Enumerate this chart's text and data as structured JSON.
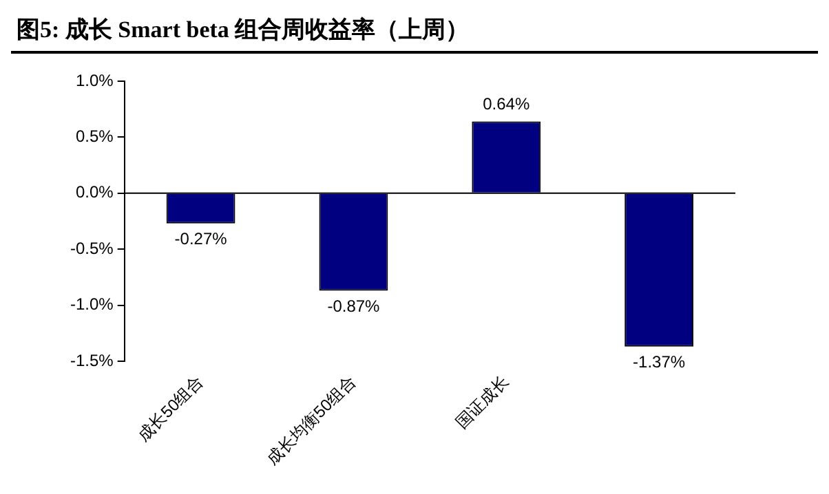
{
  "chart_data": {
    "type": "bar",
    "title": "图5: 成长 Smart beta 组合周收益率（上周）",
    "categories": [
      "成长50组合",
      "成长均衡50组合",
      "国证成长",
      null
    ],
    "values": [
      -0.27,
      -0.87,
      0.64,
      -1.37
    ],
    "color": "#000080",
    "value_labels": [
      "-0.27%",
      "-0.87%",
      "0.64%",
      "-1.37%"
    ],
    "ylim": [
      -1.5,
      1.0
    ],
    "yticks": [
      {
        "value": -1.5,
        "label": "-1.5%"
      },
      {
        "value": -1.0,
        "label": "-1.0%"
      },
      {
        "value": -0.5,
        "label": "-0.5%"
      },
      {
        "value": 0,
        "label": "0.0%"
      },
      {
        "value": 0.5,
        "label": "0.5%"
      },
      {
        "value": 1.0,
        "label": "1.0%"
      }
    ],
    "legend": false
  }
}
